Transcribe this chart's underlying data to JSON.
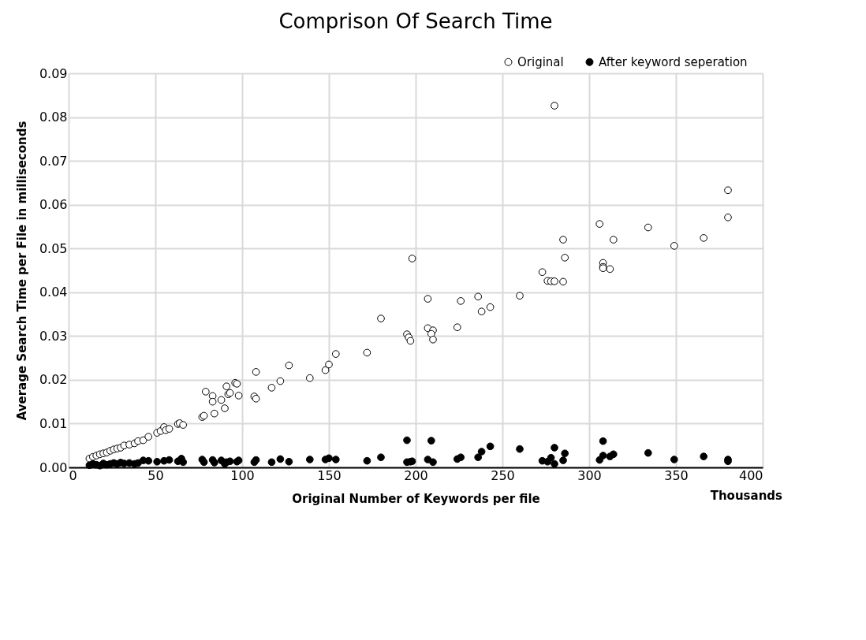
{
  "chart_data": {
    "type": "scatter",
    "title": "Comprison Of Search Time",
    "xlabel": "Original Number of Keywords per file",
    "ylabel": "Average Search Time per File in milliseconds",
    "annotations": [
      "Thousands"
    ],
    "xlim": [
      0,
      400
    ],
    "xticks": [
      0,
      50,
      100,
      150,
      200,
      250,
      300,
      350,
      400
    ],
    "ylim": [
      0,
      0.09
    ],
    "yticks": [
      {
        "value": 0,
        "label": "0.00"
      },
      0.01,
      0.02,
      0.03,
      0.04,
      0.05,
      0.06,
      0.07,
      0.08,
      0.09
    ],
    "grid": true,
    "legend": "top right",
    "marker": "circle",
    "series": [
      {
        "name": "Original",
        "color": "#ffffff",
        "x": [
          12,
          14,
          16,
          18,
          20,
          22,
          24,
          26,
          28,
          30,
          32,
          35,
          38,
          40,
          43,
          46,
          51,
          53,
          55,
          56,
          58,
          63,
          64,
          66,
          77,
          78,
          79,
          83,
          83,
          84,
          88,
          90,
          91,
          92,
          93,
          96,
          97,
          98,
          107,
          108,
          108,
          117,
          122,
          127,
          139,
          148,
          150,
          154,
          172,
          180,
          195,
          196,
          197,
          198,
          207,
          207,
          210,
          209,
          210,
          224,
          226,
          236,
          238,
          243,
          260,
          273,
          276,
          278,
          280,
          280,
          285,
          285,
          286,
          306,
          308,
          308,
          308,
          312,
          314,
          334,
          349,
          366,
          380,
          380
        ],
        "values": [
          0.002,
          0.0024,
          0.0027,
          0.003,
          0.0032,
          0.0034,
          0.0038,
          0.0041,
          0.0043,
          0.0045,
          0.005,
          0.0052,
          0.0055,
          0.006,
          0.0062,
          0.007,
          0.0079,
          0.0083,
          0.0092,
          0.0085,
          0.0088,
          0.0099,
          0.0101,
          0.0097,
          0.0115,
          0.0118,
          0.0173,
          0.0163,
          0.015,
          0.0123,
          0.0154,
          0.0135,
          0.0185,
          0.0167,
          0.017,
          0.0193,
          0.0191,
          0.0164,
          0.0162,
          0.0218,
          0.0157,
          0.0182,
          0.0197,
          0.0233,
          0.0204,
          0.0222,
          0.0235,
          0.0259,
          0.0262,
          0.034,
          0.0304,
          0.0297,
          0.0289,
          0.0477,
          0.0385,
          0.0318,
          0.0313,
          0.0305,
          0.0292,
          0.032,
          0.038,
          0.039,
          0.0356,
          0.0366,
          0.0392,
          0.0446,
          0.0426,
          0.0425,
          0.0425,
          0.0826,
          0.0424,
          0.052,
          0.0479,
          0.0556,
          0.0467,
          0.0458,
          0.0455,
          0.0453,
          0.052,
          0.0548,
          0.0506,
          0.0524,
          0.0571,
          0.0633
        ]
      },
      {
        "name": "After keyword seperation",
        "color": "#000000",
        "x": [
          12,
          14,
          16,
          18,
          20,
          22,
          24,
          26,
          28,
          30,
          32,
          35,
          38,
          40,
          43,
          46,
          51,
          55,
          58,
          63,
          65,
          66,
          77,
          78,
          83,
          84,
          88,
          90,
          91,
          93,
          97,
          98,
          107,
          108,
          117,
          122,
          127,
          139,
          148,
          150,
          154,
          172,
          180,
          195,
          195,
          197,
          198,
          207,
          209,
          210,
          224,
          226,
          236,
          238,
          243,
          260,
          273,
          276,
          278,
          280,
          280,
          285,
          286,
          306,
          308,
          308,
          312,
          314,
          334,
          349,
          366,
          380,
          380
        ],
        "values": [
          0.0005,
          0.0008,
          0.0006,
          0.0004,
          0.0009,
          0.0006,
          0.0008,
          0.001,
          0.0008,
          0.0011,
          0.0009,
          0.001,
          0.0008,
          0.001,
          0.0016,
          0.0015,
          0.0013,
          0.0015,
          0.0017,
          0.0014,
          0.002,
          0.0012,
          0.0018,
          0.0012,
          0.0017,
          0.0011,
          0.0016,
          0.0008,
          0.0012,
          0.0014,
          0.0013,
          0.0016,
          0.0012,
          0.0017,
          0.0012,
          0.0019,
          0.0013,
          0.0018,
          0.0018,
          0.0021,
          0.0018,
          0.0015,
          0.0023,
          0.0062,
          0.0012,
          0.0013,
          0.0014,
          0.0018,
          0.0061,
          0.0012,
          0.0019,
          0.0023,
          0.0023,
          0.0036,
          0.0048,
          0.0042,
          0.0015,
          0.0013,
          0.0022,
          0.0008,
          0.0045,
          0.0016,
          0.0032,
          0.0017,
          0.006,
          0.0027,
          0.0025,
          0.003,
          0.0033,
          0.0018,
          0.0025,
          0.0018,
          0.0014
        ]
      }
    ]
  }
}
